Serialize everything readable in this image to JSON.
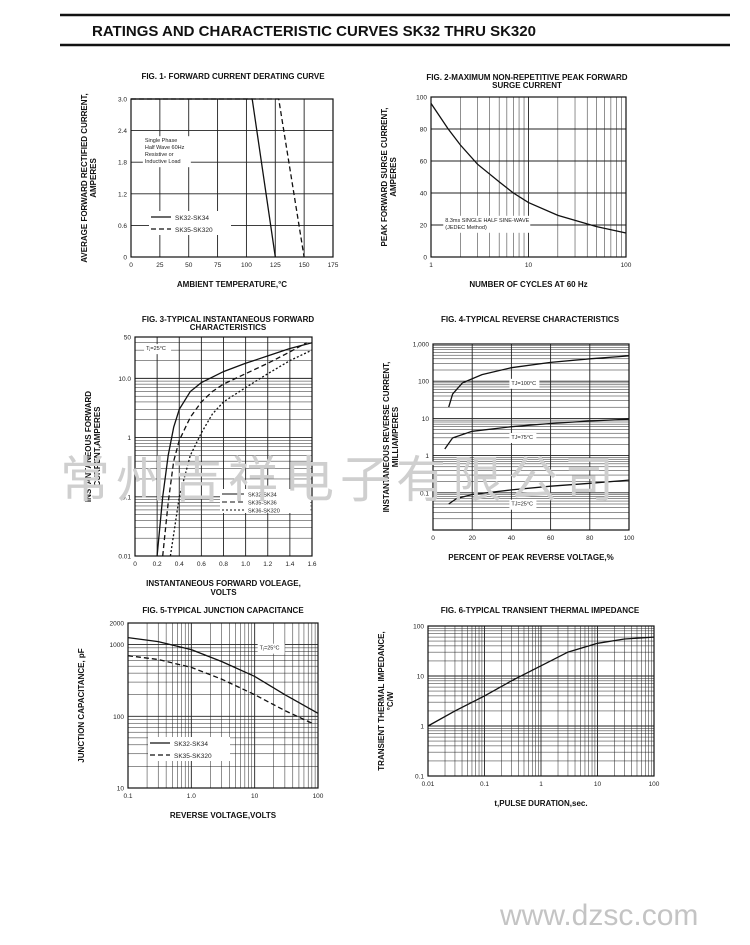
{
  "page": {
    "header_title": "RATINGS AND CHARACTERISTIC CURVES SK32 THRU SK320",
    "watermark_cn": "常州吉祥电子有限公司",
    "watermark_url": "www.dzsc.com"
  },
  "chart_data": [
    {
      "id": "fig1",
      "type": "line",
      "title": "FIG. 1- FORWARD CURRENT DERATING CURVE",
      "title2": "",
      "xlabel": "AMBIENT TEMPERATURE,°C",
      "ylabel": "AVERAGE FORWARD RECTIFIED CURRENT,",
      "ylabel2": "AMPERES",
      "xscale": "linear",
      "yscale": "linear",
      "xlim": [
        0,
        175
      ],
      "ylim": [
        0,
        3.0
      ],
      "xticks": [
        0,
        25,
        50,
        75,
        100,
        125,
        150,
        175
      ],
      "xticklabels": [
        "0",
        "25",
        "50",
        "75",
        "100",
        "125",
        "150",
        "175"
      ],
      "yticks": [
        0,
        0.6,
        1.2,
        1.8,
        2.4,
        3.0
      ],
      "yticklabels": [
        "0",
        "0.6",
        "1.2",
        "1.8",
        "2.4",
        "3.0"
      ],
      "xgrid": [
        25,
        50,
        75,
        100,
        125,
        150
      ],
      "ygrid": [
        0.6,
        1.2,
        1.8,
        2.4
      ],
      "series": [
        {
          "name": "SK32-SK34",
          "dash": "",
          "points": [
            [
              0,
              3.0
            ],
            [
              105,
              3.0
            ],
            [
              125,
              0
            ]
          ]
        },
        {
          "name": "SK35-SK320",
          "dash": "5,3",
          "points": [
            [
              0,
              3.0
            ],
            [
              128,
              3.0
            ],
            [
              150,
              0
            ]
          ]
        }
      ],
      "legend": "bottom-left",
      "annotations": [
        {
          "lines": [
            "Single Phase",
            "Half Wave 60Hz",
            "Resistive or",
            "Inductive Load"
          ],
          "x": 12,
          "y": 2.18
        }
      ]
    },
    {
      "id": "fig2",
      "type": "line",
      "title": "FIG. 2-MAXIMUM NON-REPETITIVE PEAK FORWARD",
      "title2": "SURGE CURRENT",
      "xlabel": "NUMBER OF CYCLES AT 60 Hz",
      "ylabel": "PEAK FORWARD SURGE CURRENT,",
      "ylabel2": "AMPERES",
      "xscale": "log",
      "yscale": "linear",
      "xlim": [
        1,
        100
      ],
      "ylim": [
        0,
        100
      ],
      "xticks": [
        1,
        10,
        100
      ],
      "xticklabels": [
        "1",
        "10",
        "100"
      ],
      "yticks": [
        0,
        20,
        40,
        60,
        80,
        100
      ],
      "yticklabels": [
        "0",
        "20",
        "40",
        "60",
        "80",
        "100"
      ],
      "xgrid": [
        2,
        3,
        4,
        5,
        6,
        7,
        8,
        9,
        10,
        20,
        30,
        40,
        50,
        60,
        70,
        80,
        90
      ],
      "ygrid": [
        20,
        40,
        60,
        80
      ],
      "series": [
        {
          "name": "",
          "dash": "",
          "points": [
            [
              1,
              96
            ],
            [
              1.5,
              80
            ],
            [
              2,
              70
            ],
            [
              3,
              58
            ],
            [
              5,
              47
            ],
            [
              7,
              40
            ],
            [
              10,
              34
            ],
            [
              20,
              26
            ],
            [
              50,
              19
            ],
            [
              100,
              15
            ]
          ]
        }
      ],
      "legend": "none",
      "annotations": [
        {
          "lines": [
            "8.3ms SINGLE HALF SINE-WAVE",
            "(JEDEC Method)"
          ],
          "x": 1.4,
          "y": 22
        }
      ]
    },
    {
      "id": "fig3",
      "type": "line",
      "title": "FIG. 3-TYPICAL INSTANTANEOUS FORWARD",
      "title2": "CHARACTERISTICS",
      "xlabel": "INSTANTANEOUS FORWARD VOLEAGE,",
      "xlabel2": "VOLTS",
      "ylabel": "INSTANTANEOUS FORWARD",
      "ylabel2": "CURRENT,AMPERES",
      "xscale": "linear",
      "yscale": "log",
      "xlim": [
        0,
        1.6
      ],
      "ylim": [
        0.01,
        50
      ],
      "xticks": [
        0,
        0.2,
        0.4,
        0.6,
        0.8,
        1.0,
        1.2,
        1.4,
        1.6
      ],
      "xticklabels": [
        "0",
        "0.2",
        "0.4",
        "0.6",
        "0.8",
        "1.0",
        "1.2",
        "1.4",
        "1.6"
      ],
      "yticks": [
        0.01,
        0.1,
        1,
        10,
        50
      ],
      "yticklabels": [
        "0.01",
        "0.1",
        "1",
        "10.0",
        "50"
      ],
      "xgrid": [
        0.2,
        0.4,
        0.6,
        0.8,
        1.0,
        1.2,
        1.4
      ],
      "ygrid": [
        0.02,
        0.03,
        0.04,
        0.05,
        0.06,
        0.07,
        0.08,
        0.09,
        0.1,
        0.2,
        0.3,
        0.4,
        0.5,
        0.6,
        0.7,
        0.8,
        0.9,
        1,
        2,
        3,
        4,
        5,
        6,
        7,
        8,
        9,
        10,
        20,
        30,
        40
      ],
      "series": [
        {
          "name": "SK32-SK34",
          "dash": "",
          "points": [
            [
              0.2,
              0.01
            ],
            [
              0.25,
              0.1
            ],
            [
              0.3,
              0.5
            ],
            [
              0.35,
              1.5
            ],
            [
              0.4,
              3
            ],
            [
              0.5,
              6
            ],
            [
              0.6,
              8.5
            ],
            [
              0.8,
              13
            ],
            [
              1.0,
              18
            ],
            [
              1.2,
              24
            ],
            [
              1.4,
              32
            ],
            [
              1.6,
              40
            ]
          ]
        },
        {
          "name": "SK35-SK36",
          "dash": "5,3",
          "points": [
            [
              0.25,
              0.01
            ],
            [
              0.3,
              0.08
            ],
            [
              0.35,
              0.4
            ],
            [
              0.4,
              0.9
            ],
            [
              0.5,
              2.2
            ],
            [
              0.6,
              4
            ],
            [
              0.7,
              6
            ],
            [
              0.8,
              8
            ],
            [
              1.0,
              12
            ],
            [
              1.2,
              18
            ],
            [
              1.4,
              28
            ],
            [
              1.55,
              40
            ]
          ]
        },
        {
          "name": "SK36-SK320",
          "dash": "2,2",
          "points": [
            [
              0.32,
              0.01
            ],
            [
              0.4,
              0.1
            ],
            [
              0.5,
              0.5
            ],
            [
              0.6,
              1.2
            ],
            [
              0.7,
              2.5
            ],
            [
              0.8,
              4
            ],
            [
              1.0,
              7
            ],
            [
              1.2,
              12
            ],
            [
              1.4,
              20
            ],
            [
              1.6,
              30
            ]
          ]
        }
      ],
      "legend": "bottom-right",
      "annotations": [
        {
          "lines": [
            "Tⱼ=25°C"
          ],
          "x": 0.1,
          "y": 30
        }
      ]
    },
    {
      "id": "fig4",
      "type": "line",
      "title": "FIG. 4-TYPICAL REVERSE CHARACTERISTICS",
      "title2": "",
      "xlabel": "PERCENT OF PEAK REVERSE VOLTAGE,%",
      "ylabel": "INSTANTANEOUS REVERSE CURRENT,",
      "ylabel2": "MILLIAMPERES",
      "xscale": "linear",
      "yscale": "log",
      "xlim": [
        0,
        100
      ],
      "ylim": [
        0.01,
        1000
      ],
      "xticks": [
        0,
        20,
        40,
        60,
        80,
        100
      ],
      "xticklabels": [
        "0",
        "20",
        "40",
        "60",
        "80",
        "100"
      ],
      "yticks": [
        0.1,
        1,
        10,
        100,
        1000
      ],
      "yticklabels": [
        "0.1",
        "1",
        "10",
        "100",
        "1,000"
      ],
      "xgrid": [
        20,
        40,
        60,
        80
      ],
      "ygrid": [
        0.02,
        0.03,
        0.04,
        0.05,
        0.06,
        0.07,
        0.08,
        0.09,
        0.1,
        0.2,
        0.3,
        0.4,
        0.5,
        0.6,
        0.7,
        0.8,
        0.9,
        1,
        2,
        3,
        4,
        5,
        6,
        7,
        8,
        9,
        10,
        20,
        30,
        40,
        50,
        60,
        70,
        80,
        90,
        100,
        200,
        300,
        400,
        500,
        600,
        700,
        800,
        900
      ],
      "series": [
        {
          "name": "TJ=100°C",
          "dash": "",
          "points": [
            [
              8,
              20
            ],
            [
              10,
              45
            ],
            [
              15,
              90
            ],
            [
              25,
              150
            ],
            [
              40,
              230
            ],
            [
              60,
              320
            ],
            [
              80,
              400
            ],
            [
              100,
              480
            ]
          ]
        },
        {
          "name": "TJ=75°C",
          "dash": "",
          "points": [
            [
              6,
              1.5
            ],
            [
              10,
              3
            ],
            [
              20,
              4.5
            ],
            [
              40,
              6
            ],
            [
              60,
              7.3
            ],
            [
              80,
              8.5
            ],
            [
              100,
              9.5
            ]
          ]
        },
        {
          "name": "TJ=25°C",
          "dash": "",
          "points": [
            [
              8,
              0.05
            ],
            [
              12,
              0.07
            ],
            [
              20,
              0.09
            ],
            [
              40,
              0.12
            ],
            [
              60,
              0.15
            ],
            [
              80,
              0.18
            ],
            [
              100,
              0.22
            ]
          ]
        }
      ],
      "legend": "inline",
      "annotations": [
        {
          "lines": [
            "TJ=100°C"
          ],
          "x": 40,
          "y": 80
        },
        {
          "lines": [
            "TJ=75°C"
          ],
          "x": 40,
          "y": 2.8
        },
        {
          "lines": [
            "TJ=25°C"
          ],
          "x": 40,
          "y": 0.045
        }
      ]
    },
    {
      "id": "fig5",
      "type": "line",
      "title": "FIG. 5-TYPICAL JUNCTION CAPACITANCE",
      "title2": "",
      "xlabel": "REVERSE VOLTAGE,VOLTS",
      "ylabel": "JUNCTION CAPACITANCE, pF",
      "ylabel2": "",
      "xscale": "log",
      "yscale": "log",
      "xlim": [
        0.1,
        100
      ],
      "ylim": [
        10,
        2000
      ],
      "xticks": [
        0.1,
        1,
        10,
        100
      ],
      "xticklabels": [
        "0.1",
        "1.0",
        "10",
        "100"
      ],
      "yticks": [
        10,
        100,
        1000,
        2000
      ],
      "yticklabels": [
        "10",
        "100",
        "1000",
        "2000"
      ],
      "xgrid": [
        0.2,
        0.3,
        0.4,
        0.5,
        0.6,
        0.7,
        0.8,
        0.9,
        1,
        2,
        3,
        4,
        5,
        6,
        7,
        8,
        9,
        10,
        20,
        30,
        40,
        50,
        60,
        70,
        80,
        90
      ],
      "ygrid": [
        20,
        30,
        40,
        50,
        60,
        70,
        80,
        90,
        100,
        200,
        300,
        400,
        500,
        600,
        700,
        800,
        900,
        1000
      ],
      "series": [
        {
          "name": "SK32-SK34",
          "dash": "",
          "points": [
            [
              0.1,
              1250
            ],
            [
              0.3,
              1100
            ],
            [
              1,
              850
            ],
            [
              3,
              580
            ],
            [
              10,
              360
            ],
            [
              30,
              200
            ],
            [
              100,
              110
            ]
          ]
        },
        {
          "name": "SK35-SK320",
          "dash": "5,3",
          "points": [
            [
              0.1,
              700
            ],
            [
              0.3,
              620
            ],
            [
              1,
              480
            ],
            [
              3,
              330
            ],
            [
              10,
              200
            ],
            [
              30,
              120
            ],
            [
              80,
              80
            ]
          ]
        }
      ],
      "legend": "bottom-left",
      "annotations": [
        {
          "lines": [
            "Tⱼ=25°C"
          ],
          "x": 12,
          "y": 850
        }
      ]
    },
    {
      "id": "fig6",
      "type": "line",
      "title": "FIG. 6-TYPICAL TRANSIENT THERMAL IMPEDANCE",
      "title2": "",
      "xlabel": "t,PULSE DURATION,sec.",
      "ylabel": "TRANSIENT THERMAL IMPEDANCE,",
      "ylabel2": "°C/W",
      "xscale": "log",
      "yscale": "log",
      "xlim": [
        0.01,
        100
      ],
      "ylim": [
        0.1,
        100
      ],
      "xticks": [
        0.01,
        0.1,
        1,
        10,
        100
      ],
      "xticklabels": [
        "0.01",
        "0.1",
        "1",
        "10",
        "100"
      ],
      "yticks": [
        0.1,
        1,
        10,
        100
      ],
      "yticklabels": [
        "0.1",
        "1",
        "10",
        "100"
      ],
      "xgrid": [
        0.02,
        0.03,
        0.04,
        0.05,
        0.06,
        0.07,
        0.08,
        0.09,
        0.1,
        0.2,
        0.3,
        0.4,
        0.5,
        0.6,
        0.7,
        0.8,
        0.9,
        1,
        2,
        3,
        4,
        5,
        6,
        7,
        8,
        9,
        10,
        20,
        30,
        40,
        50,
        60,
        70,
        80,
        90
      ],
      "ygrid": [
        0.2,
        0.3,
        0.4,
        0.5,
        0.6,
        0.7,
        0.8,
        0.9,
        1,
        2,
        3,
        4,
        5,
        6,
        7,
        8,
        9,
        10,
        20,
        30,
        40,
        50,
        60,
        70,
        80,
        90
      ],
      "series": [
        {
          "name": "",
          "dash": "",
          "points": [
            [
              0.01,
              1
            ],
            [
              0.03,
              2
            ],
            [
              0.1,
              4
            ],
            [
              0.3,
              8
            ],
            [
              1,
              16
            ],
            [
              3,
              30
            ],
            [
              10,
              45
            ],
            [
              30,
              55
            ],
            [
              100,
              60
            ]
          ]
        }
      ],
      "legend": "none",
      "annotations": []
    }
  ]
}
